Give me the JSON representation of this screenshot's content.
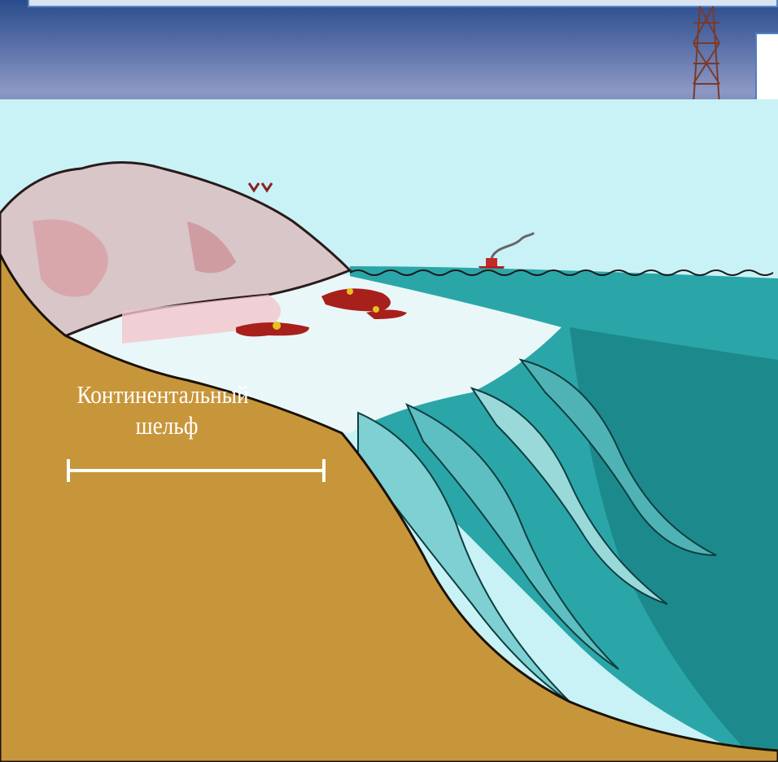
{
  "diagram": {
    "label_line_1": "Континентальный",
    "label_line_2": "шельф"
  },
  "colors": {
    "sky": "#c9f2f6",
    "seafloor": "#c8963a",
    "sea": "#2ba6a8",
    "deep_sea": "#1c8a8c",
    "shelf_water": "#e8f6f8",
    "land": "#d8c6c8",
    "background": "#0d2c5c"
  }
}
